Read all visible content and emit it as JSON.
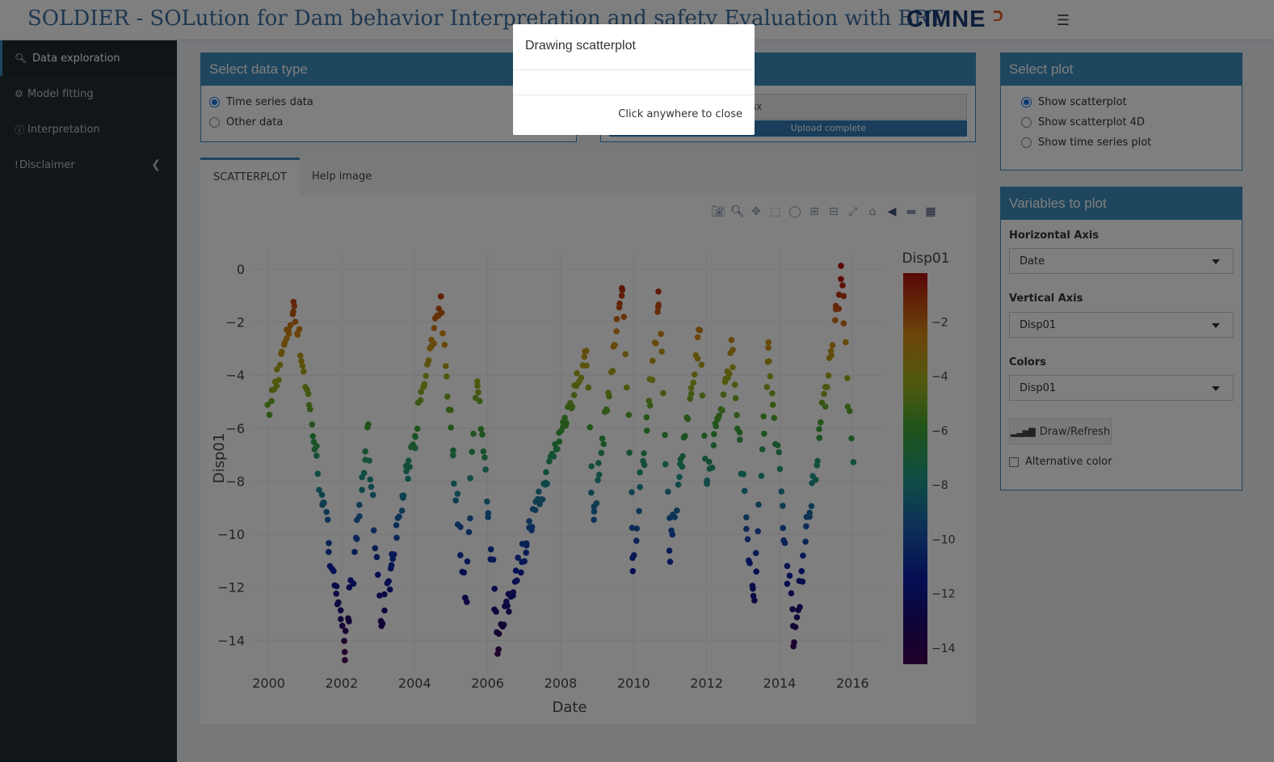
{
  "header": {
    "title": "SOLDIER - SOLution for Dam behavior Interpretation and safety Evaluation with BRT",
    "logo_text": "CIMNE",
    "menu_icon": "hamburger-icon"
  },
  "sidebar": {
    "items": [
      {
        "label": "Data exploration",
        "icon": "search-icon",
        "active": true
      },
      {
        "label": "Model fitting",
        "icon": "gear-icon"
      },
      {
        "label": "Interpretation",
        "icon": "info-icon"
      },
      {
        "label": "Disclaimer",
        "icon": "exclamation-icon"
      }
    ]
  },
  "data_type_box": {
    "title": "Select data type",
    "options": [
      "Time series data",
      "Other data"
    ],
    "selected": "Time series data"
  },
  "upload_box": {
    "file_name_suffix": "sx",
    "progress_label": "Upload complete",
    "progress": 1.0
  },
  "tabs": [
    {
      "label": "SCATTERPLOT",
      "active": true
    },
    {
      "label": "Help image"
    }
  ],
  "select_plot_box": {
    "title": "Select plot",
    "options": [
      "Show scatterplot",
      "Show scatterplot 4D",
      "Show time series plot"
    ],
    "selected": "Show scatterplot"
  },
  "variables_box": {
    "title": "Variables to plot",
    "horizontal_label": "Horizontal Axis",
    "horizontal_value": "Date",
    "vertical_label": "Vertical Axis",
    "vertical_value": "Disp01",
    "colors_label": "Colors",
    "colors_value": "Disp01",
    "draw_button": "Draw/Refresh",
    "alt_color_label": "Alternative color",
    "alt_color_checked": false
  },
  "modal": {
    "title": "Drawing scatterplot",
    "footer": "Click anywhere to close"
  },
  "modebar_icons": [
    "camera-icon",
    "zoom-icon",
    "pan-icon",
    "box-select-icon",
    "lasso-icon",
    "zoom-in-icon",
    "zoom-out-icon",
    "autoscale-icon",
    "home-icon",
    "hover-closest-icon",
    "hover-compare-icon",
    "plotly-logo-icon"
  ],
  "colors": {
    "accent": "#3c8dbc",
    "sidebar_bg": "#222d32",
    "title_color": "#3c6fa0"
  },
  "chart_data": {
    "type": "scatter",
    "xlabel": "Date",
    "ylabel": "Disp01",
    "colorbar_title": "Disp01",
    "colorscale": "jet",
    "xlim": [
      1999.5,
      2016.9
    ],
    "ylim": [
      -15.3,
      0.7
    ],
    "xticks": [
      2000,
      2002,
      2004,
      2006,
      2008,
      2010,
      2012,
      2014,
      2016
    ],
    "yticks": [
      0,
      -2,
      -4,
      -6,
      -8,
      -10,
      -12,
      -14
    ],
    "colorbar_ticks": [
      -2,
      -4,
      -6,
      -8,
      -10,
      -12,
      -14
    ],
    "color_range": [
      -14.6,
      -0.2
    ],
    "grid": true,
    "cycles": [
      {
        "start": 2000.0,
        "start_value": -5.5,
        "peak_time": 2000.7,
        "peak": -1.4,
        "trough_time": 2002.1,
        "trough": -14.5
      },
      {
        "start": 2002.1,
        "start_value": -14.5,
        "peak_time": 2002.7,
        "peak": -6.3,
        "trough_time": 2003.1,
        "trough": -13.5
      },
      {
        "start": 2003.1,
        "start_value": -13.5,
        "peak_time": 2004.7,
        "peak": -1.3,
        "trough_time": 2005.4,
        "trough": -12.6
      },
      {
        "start": 2005.4,
        "start_value": -12.6,
        "peak_time": 2005.7,
        "peak": -4.0,
        "trough_time": 2006.3,
        "trough": -14.1
      },
      {
        "start": 2006.3,
        "start_value": -14.1,
        "peak_time": 2008.7,
        "peak": -3.3,
        "trough_time": 2008.9,
        "trough": -9.5
      },
      {
        "start": 2008.9,
        "start_value": -9.5,
        "peak_time": 2009.7,
        "peak": -0.6,
        "trough_time": 2010.0,
        "trough": -11.2
      },
      {
        "start": 2010.0,
        "start_value": -11.2,
        "peak_time": 2010.7,
        "peak": -1.2,
        "trough_time": 2011.0,
        "trough": -10.6
      },
      {
        "start": 2011.0,
        "start_value": -10.6,
        "peak_time": 2011.8,
        "peak": -2.7,
        "trough_time": 2012.0,
        "trough": -8.2
      },
      {
        "start": 2012.0,
        "start_value": -8.2,
        "peak_time": 2012.7,
        "peak": -3.1,
        "trough_time": 2013.3,
        "trough": -12.7
      },
      {
        "start": 2013.3,
        "start_value": -12.7,
        "peak_time": 2013.7,
        "peak": -3.0,
        "trough_time": 2014.4,
        "trough": -14.1
      },
      {
        "start": 2014.4,
        "start_value": -14.1,
        "peak_time": 2015.7,
        "peak": -0.2,
        "trough_time": 2016.0,
        "trough": -7.6
      }
    ],
    "point_count": 520
  }
}
